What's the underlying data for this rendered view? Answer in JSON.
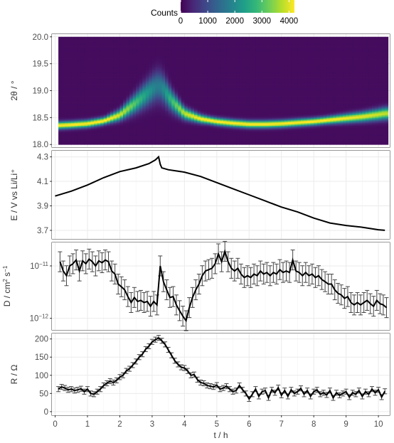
{
  "chart_data": [
    {
      "type": "heatmap",
      "ylabel": "2θ / °",
      "x_tick_labels": [
        "0",
        "1",
        "2",
        "3",
        "4",
        "5",
        "6",
        "7",
        "8",
        "9",
        "10"
      ],
      "y_ticks": [
        18.0,
        18.5,
        19.0,
        19.5,
        20.0
      ],
      "y_tick_labels": [
        "18.0",
        "18.5",
        "19.0",
        "19.5",
        "20.0"
      ],
      "ylim": [
        17.95,
        20.05
      ],
      "xlim": [
        -0.1,
        10.35
      ],
      "grid": true,
      "legend": {
        "title": "Counts",
        "ticks": [
          0,
          1000,
          2000,
          3000,
          4000
        ],
        "tick_labels": [
          "0",
          "1000",
          "2000",
          "3000",
          "4000"
        ],
        "range": [
          0,
          4200
        ],
        "position": "top",
        "colormap": [
          "#440154",
          "#482878",
          "#3e4989",
          "#31688e",
          "#26828e",
          "#1f9e89",
          "#35b779",
          "#6ece58",
          "#b5de2b",
          "#fde725"
        ]
      },
      "peak_position": {
        "x": [
          0.15,
          0.5,
          1.0,
          1.5,
          2.0,
          2.5,
          2.8,
          3.05,
          3.2,
          3.35,
          3.6,
          4.0,
          4.5,
          5.0,
          5.5,
          6.0,
          6.5,
          7.0,
          7.5,
          8.0,
          8.5,
          9.0,
          9.5,
          10.0,
          10.2
        ],
        "y": [
          18.36,
          18.37,
          18.39,
          18.44,
          18.55,
          18.78,
          18.93,
          19.05,
          19.1,
          19.03,
          18.82,
          18.58,
          18.48,
          18.43,
          18.4,
          18.38,
          18.38,
          18.39,
          18.41,
          18.43,
          18.46,
          18.49,
          18.52,
          18.56,
          18.58
        ]
      },
      "x_range": [
        0.1,
        10.3
      ],
      "y_range": [
        18.0,
        20.0
      ]
    },
    {
      "type": "line",
      "ylabel": "E / V vs Li/Li⁺",
      "y_ticks": [
        3.7,
        3.9,
        4.1,
        4.3
      ],
      "y_tick_labels": [
        "3.7",
        "3.9",
        "4.1",
        "4.3"
      ],
      "ylim": [
        3.63,
        4.35
      ],
      "xlim": [
        -0.1,
        10.35
      ],
      "grid": true,
      "series": [
        {
          "x": [
            0.0,
            0.5,
            1.0,
            1.5,
            2.0,
            2.5,
            2.9,
            3.1,
            3.2,
            3.25,
            3.3,
            3.5,
            4.0,
            4.5,
            5.0,
            5.5,
            6.0,
            6.5,
            7.0,
            7.5,
            8.0,
            8.5,
            9.0,
            9.5,
            10.0,
            10.2
          ],
          "y": [
            3.98,
            4.02,
            4.07,
            4.13,
            4.18,
            4.21,
            4.245,
            4.275,
            4.3,
            4.24,
            4.21,
            4.195,
            4.175,
            4.14,
            4.09,
            4.04,
            3.99,
            3.94,
            3.89,
            3.85,
            3.8,
            3.76,
            3.74,
            3.725,
            3.705,
            3.7
          ]
        }
      ]
    },
    {
      "type": "line",
      "ylabel_parts": [
        "D / cm",
        "2",
        " s",
        "−1"
      ],
      "y_scale": "log",
      "y_ticks": [
        1e-12,
        1e-11
      ],
      "y_tick_labels": [
        [
          "10",
          "−12"
        ],
        [
          "10",
          "−11"
        ]
      ],
      "ylim": [
        6e-13,
        2.8e-11
      ],
      "xlim": [
        -0.1,
        10.35
      ],
      "grid": true,
      "series": [
        {
          "x": [
            0.15,
            0.25,
            0.35,
            0.45,
            0.55,
            0.65,
            0.75,
            0.85,
            0.95,
            1.05,
            1.15,
            1.25,
            1.35,
            1.45,
            1.55,
            1.65,
            1.75,
            1.85,
            1.95,
            2.05,
            2.15,
            2.25,
            2.35,
            2.45,
            2.55,
            2.65,
            2.75,
            2.85,
            2.95,
            3.05,
            3.15,
            3.25,
            3.35,
            3.45,
            3.55,
            3.65,
            3.75,
            3.85,
            3.95,
            4.05,
            4.15,
            4.25,
            4.35,
            4.45,
            4.55,
            4.65,
            4.75,
            4.85,
            4.95,
            5.05,
            5.15,
            5.25,
            5.35,
            5.45,
            5.55,
            5.65,
            5.75,
            5.85,
            5.95,
            6.05,
            6.15,
            6.25,
            6.35,
            6.45,
            6.55,
            6.65,
            6.75,
            6.85,
            6.95,
            7.05,
            7.15,
            7.25,
            7.35,
            7.45,
            7.55,
            7.65,
            7.75,
            7.85,
            7.95,
            8.05,
            8.15,
            8.25,
            8.35,
            8.45,
            8.55,
            8.65,
            8.75,
            8.85,
            8.95,
            9.05,
            9.15,
            9.25,
            9.35,
            9.45,
            9.55,
            9.65,
            9.75,
            9.85,
            9.95,
            10.05,
            10.15,
            10.25
          ],
          "y": [
            1.2e-11,
            8e-12,
            6.5e-12,
            1e-11,
            1.1e-11,
            1.3e-11,
            8e-12,
            1.25e-11,
            1.1e-11,
            1.35e-11,
            1.2e-11,
            1e-11,
            1.25e-11,
            1.15e-11,
            1.3e-11,
            1.2e-11,
            8e-12,
            7e-12,
            4.5e-12,
            4e-12,
            3.5e-12,
            2.6e-12,
            2e-12,
            2.5e-12,
            2.1e-12,
            2.2e-12,
            2e-12,
            2.1e-12,
            1.7e-12,
            2.1e-12,
            1.8e-12,
            1e-11,
            5e-12,
            3.5e-12,
            2.5e-12,
            2.6e-12,
            1.8e-12,
            1.4e-12,
            1.1e-12,
            9e-13,
            1.6e-12,
            2.5e-12,
            3.5e-12,
            4.5e-12,
            6.5e-12,
            8e-12,
            8.5e-12,
            9e-12,
            1.1e-11,
            1.7e-11,
            1.2e-11,
            1.9e-11,
            1.2e-11,
            9e-12,
            8e-12,
            9e-12,
            7e-12,
            6e-12,
            6.5e-12,
            6e-12,
            7e-12,
            6.5e-12,
            8e-12,
            7e-12,
            7.5e-12,
            6.5e-12,
            7.5e-12,
            7e-12,
            8.5e-12,
            7.5e-12,
            8e-12,
            7.5e-12,
            1.3e-11,
            8e-12,
            7.5e-12,
            6.5e-12,
            7.5e-12,
            6.5e-12,
            7e-12,
            6e-12,
            6.5e-12,
            5.5e-12,
            5e-12,
            4.5e-12,
            4.5e-12,
            3.5e-12,
            3e-12,
            2.8e-12,
            2.4e-12,
            2.6e-12,
            2e-12,
            1.8e-12,
            2e-12,
            1.8e-12,
            2e-12,
            2.2e-12,
            1.9e-12,
            1.7e-12,
            2.2e-12,
            1.9e-12,
            1.8e-12,
            1.6e-12
          ],
          "err_factor": 1.55
        }
      ]
    },
    {
      "type": "line",
      "ylabel": "R / Ω",
      "xlabel": "t / h",
      "x_ticks": [
        0,
        1,
        2,
        3,
        4,
        5,
        6,
        7,
        8,
        9,
        10
      ],
      "x_tick_labels": [
        "0",
        "1",
        "2",
        "3",
        "4",
        "5",
        "6",
        "7",
        "8",
        "9",
        "10"
      ],
      "y_ticks": [
        0,
        50,
        100,
        150,
        200
      ],
      "y_tick_labels": [
        "0",
        "50",
        "100",
        "150",
        "200"
      ],
      "ylim": [
        -10,
        215
      ],
      "xlim": [
        -0.1,
        10.35
      ],
      "grid": true,
      "series": [
        {
          "x": [
            0.1,
            0.2,
            0.3,
            0.4,
            0.5,
            0.6,
            0.7,
            0.8,
            0.9,
            1.0,
            1.1,
            1.2,
            1.3,
            1.4,
            1.5,
            1.6,
            1.7,
            1.8,
            1.9,
            2.0,
            2.1,
            2.2,
            2.3,
            2.4,
            2.5,
            2.6,
            2.7,
            2.8,
            2.9,
            3.0,
            3.1,
            3.2,
            3.3,
            3.4,
            3.5,
            3.6,
            3.7,
            3.8,
            3.9,
            4.0,
            4.1,
            4.2,
            4.3,
            4.4,
            4.5,
            4.6,
            4.7,
            4.8,
            4.9,
            5.0,
            5.1,
            5.2,
            5.3,
            5.4,
            5.5,
            5.6,
            5.7,
            5.8,
            5.9,
            6.0,
            6.1,
            6.2,
            6.3,
            6.4,
            6.5,
            6.6,
            6.7,
            6.8,
            6.9,
            7.0,
            7.1,
            7.2,
            7.3,
            7.4,
            7.5,
            7.6,
            7.7,
            7.8,
            7.9,
            8.0,
            8.1,
            8.2,
            8.3,
            8.4,
            8.5,
            8.6,
            8.7,
            8.8,
            8.9,
            9.0,
            9.1,
            9.2,
            9.3,
            9.4,
            9.5,
            9.6,
            9.7,
            9.8,
            9.9,
            10.0,
            10.1,
            10.2
          ],
          "y": [
            62,
            68,
            65,
            60,
            62,
            58,
            60,
            63,
            55,
            62,
            50,
            48,
            55,
            62,
            72,
            78,
            84,
            80,
            86,
            95,
            100,
            112,
            118,
            128,
            138,
            150,
            158,
            172,
            180,
            192,
            198,
            203,
            195,
            185,
            170,
            155,
            140,
            130,
            122,
            120,
            112,
            100,
            102,
            88,
            80,
            78,
            72,
            70,
            68,
            73,
            62,
            65,
            70,
            62,
            55,
            58,
            72,
            60,
            50,
            35,
            48,
            62,
            42,
            55,
            58,
            38,
            60,
            52,
            66,
            45,
            58,
            42,
            60,
            50,
            55,
            64,
            48,
            58,
            42,
            55,
            60,
            48,
            52,
            46,
            58,
            38,
            52,
            45,
            50,
            55,
            40,
            52,
            48,
            58,
            42,
            55,
            48,
            62,
            52,
            60,
            40,
            56
          ],
          "err": 7
        }
      ]
    }
  ]
}
